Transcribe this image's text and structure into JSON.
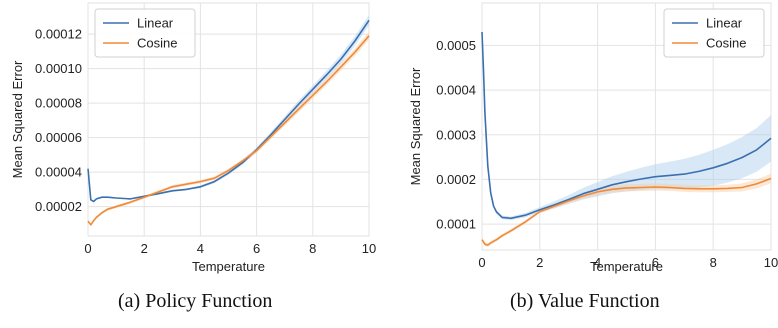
{
  "chart_data": [
    {
      "type": "line",
      "caption": "(a) Policy Function",
      "xlabel": "Temperature",
      "ylabel": "Mean Squared Error",
      "xlim": [
        0,
        10
      ],
      "ylim": [
        3e-06,
        0.000138
      ],
      "x_ticks": [
        0,
        2,
        4,
        6,
        8,
        10
      ],
      "x_tick_labels": [
        "0",
        "2",
        "4",
        "6",
        "8",
        "10"
      ],
      "y_ticks": [
        2e-05,
        4e-05,
        6e-05,
        8e-05,
        0.0001,
        0.00012
      ],
      "y_tick_labels": [
        "0.00002",
        "0.00004",
        "0.00006",
        "0.00008",
        "0.00010",
        "0.00012"
      ],
      "grid": true,
      "legend_position": "top-left",
      "series": [
        {
          "name": "Linear",
          "color": "#3a70b0",
          "band_color": "#a9cbea",
          "x": [
            0,
            0.1,
            0.2,
            0.3,
            0.5,
            0.7,
            1,
            1.5,
            2,
            2.5,
            3,
            3.5,
            4,
            4.5,
            5,
            5.5,
            6,
            6.5,
            7,
            7.5,
            8,
            8.5,
            9,
            9.5,
            10
          ],
          "y": [
            4.2e-05,
            2.4e-05,
            2.3e-05,
            2.45e-05,
            2.55e-05,
            2.55e-05,
            2.5e-05,
            2.45e-05,
            2.6e-05,
            2.75e-05,
            2.92e-05,
            3e-05,
            3.15e-05,
            3.45e-05,
            3.95e-05,
            4.55e-05,
            5.3e-05,
            6.15e-05,
            7.05e-05,
            7.95e-05,
            8.8e-05,
            9.65e-05,
            0.0001055,
            0.000116,
            0.000128
          ],
          "band": [
            0,
            0,
            0,
            0,
            0,
            0,
            0,
            0,
            5e-07,
            5e-07,
            6e-07,
            6e-07,
            8e-07,
            9e-07,
            1e-06,
            1.2e-06,
            1.4e-06,
            1.6e-06,
            1.8e-06,
            2e-06,
            2.2e-06,
            2.4e-06,
            2.6e-06,
            2.8e-06,
            3e-06
          ]
        },
        {
          "name": "Cosine",
          "color": "#f08a38",
          "band_color": "#f9cca2",
          "x": [
            0,
            0.1,
            0.2,
            0.3,
            0.5,
            0.7,
            1,
            1.5,
            2,
            2.5,
            3,
            3.5,
            4,
            4.5,
            5,
            5.5,
            6,
            6.5,
            7,
            7.5,
            8,
            8.5,
            9,
            9.5,
            10
          ],
          "y": [
            1.15e-05,
            9.5e-06,
            1.18e-05,
            1.38e-05,
            1.65e-05,
            1.85e-05,
            2e-05,
            2.25e-05,
            2.55e-05,
            2.85e-05,
            3.15e-05,
            3.3e-05,
            3.45e-05,
            3.65e-05,
            4.1e-05,
            4.65e-05,
            5.25e-05,
            6.05e-05,
            6.85e-05,
            7.65e-05,
            8.45e-05,
            9.25e-05,
            0.000101,
            0.0001095,
            0.000119
          ],
          "band": [
            8e-07,
            8e-07,
            8e-07,
            8e-07,
            8e-07,
            8e-07,
            8e-07,
            8e-07,
            9e-07,
            1e-06,
            1e-06,
            1e-06,
            1e-06,
            1e-06,
            1.1e-06,
            1.2e-06,
            1.4e-06,
            1.6e-06,
            1.7e-06,
            1.8e-06,
            1.9e-06,
            2e-06,
            2.1e-06,
            2.2e-06,
            2.3e-06
          ]
        }
      ]
    },
    {
      "type": "line",
      "caption": "(b) Value Function",
      "xlabel": "Temperature",
      "ylabel": "Mean Squared Error",
      "xlim": [
        0,
        10
      ],
      "ylim": [
        4.2e-05,
        0.000595
      ],
      "x_ticks": [
        0,
        2,
        4,
        6,
        8,
        10
      ],
      "x_tick_labels": [
        "0",
        "2",
        "4",
        "6",
        "8",
        "10"
      ],
      "y_ticks": [
        0.0001,
        0.0002,
        0.0003,
        0.0004,
        0.0005
      ],
      "y_tick_labels": [
        "0.0001",
        "0.0002",
        "0.0003",
        "0.0004",
        "0.0005"
      ],
      "grid": true,
      "legend_position": "top-right",
      "series": [
        {
          "name": "Linear",
          "color": "#3a70b0",
          "band_color": "#a9cbea",
          "x": [
            0,
            0.05,
            0.1,
            0.2,
            0.3,
            0.4,
            0.5,
            0.7,
            1,
            1.5,
            2,
            2.5,
            3,
            3.5,
            4,
            4.5,
            5,
            5.5,
            6,
            6.5,
            7,
            7.5,
            8,
            8.5,
            9,
            9.5,
            10
          ],
          "y": [
            0.00053,
            0.00045,
            0.00035,
            0.00023,
            0.00017,
            0.00014,
            0.000127,
            0.000115,
            0.000113,
            0.00012,
            0.000132,
            0.000143,
            0.000155,
            0.000168,
            0.000178,
            0.000188,
            0.000195,
            0.000201,
            0.000206,
            0.000209,
            0.000212,
            0.000218,
            0.000226,
            0.000236,
            0.000249,
            0.000266,
            0.000292
          ],
          "band": [
            3e-06,
            4e-06,
            4e-06,
            4e-06,
            4e-06,
            4e-06,
            4e-06,
            4e-06,
            4e-06,
            5e-06,
            6e-06,
            8e-06,
            1e-05,
            1.3e-05,
            1.6e-05,
            1.9e-05,
            2.2e-05,
            2.5e-05,
            2.8e-05,
            3.1e-05,
            3.4e-05,
            3.7e-05,
            4e-05,
            4.3e-05,
            4.6e-05,
            4.9e-05,
            5.2e-05
          ]
        },
        {
          "name": "Cosine",
          "color": "#f08a38",
          "band_color": "#f9cca2",
          "x": [
            0,
            0.1,
            0.2,
            0.3,
            0.5,
            0.7,
            1,
            1.5,
            2,
            2.5,
            3,
            3.5,
            4,
            4.5,
            5,
            5.5,
            6,
            6.5,
            7,
            7.5,
            8,
            8.5,
            9,
            9.5,
            10
          ],
          "y": [
            6.5e-05,
            5.5e-05,
            5.3e-05,
            5.8e-05,
            6.5e-05,
            7.4e-05,
            8.5e-05,
            0.000105,
            0.000128,
            0.00014,
            0.000152,
            0.000163,
            0.000172,
            0.000178,
            0.000181,
            0.000182,
            0.000183,
            0.000182,
            0.00018,
            0.000179,
            0.000179,
            0.00018,
            0.000182,
            0.00019,
            0.000202
          ],
          "band": [
            4e-06,
            4e-06,
            4e-06,
            4e-06,
            4e-06,
            4e-06,
            4e-06,
            4e-06,
            4e-06,
            4e-06,
            5e-06,
            6e-06,
            7e-06,
            7e-06,
            8e-06,
            8e-06,
            8e-06,
            8e-06,
            8e-06,
            8e-06,
            8e-06,
            8e-06,
            9e-06,
            1e-05,
            1.1e-05
          ]
        }
      ]
    }
  ]
}
